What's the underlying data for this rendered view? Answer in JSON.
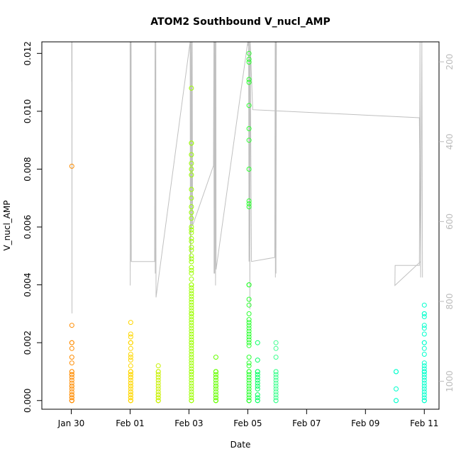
{
  "chart_data": {
    "type": "scatter",
    "title": "ATOM2 Southbound V_nucl_AMP",
    "xlabel": "Date",
    "ylabel": "V_nucl_AMP",
    "x_ticks": [
      "Jan 30",
      "Feb 01",
      "Feb 03",
      "Feb 05",
      "Feb 07",
      "Feb 09",
      "Feb 11"
    ],
    "y_ticks": [
      "0.000",
      "0.002",
      "0.004",
      "0.006",
      "0.008",
      "0.010",
      "0.012"
    ],
    "y_tick_values": [
      0,
      0.002,
      0.004,
      0.006,
      0.008,
      0.01,
      0.012
    ],
    "y2_ticks": [
      "200",
      "400",
      "600",
      "800",
      "1000"
    ],
    "y2_tick_values": [
      200,
      400,
      600,
      800,
      1000
    ],
    "y2_note": "secondary axis reversed (top 200, bottom 1000)",
    "xlim": [
      "2026-01-29 00:00",
      "2026-02-11 12:00"
    ],
    "ylim": [
      -0.0003,
      0.0124
    ],
    "y2lim": [
      1070,
      150
    ],
    "grid": false,
    "marker": "open circle",
    "colors": {
      "clusters": [
        "#ff8c00",
        "#ffd700",
        "#c8f000",
        "#9cff00",
        "#66ff00",
        "#2cff30",
        "#00ff60",
        "#40ff90",
        "#00ffcc"
      ],
      "depth_line": "#c0c0c0"
    },
    "clusters": [
      {
        "x": "2026-01-30 00:30",
        "color": "#ff8c00",
        "values": [
          0.0081,
          0.0026,
          0.002,
          0.002,
          0.0018,
          0.0015,
          0.0013,
          0.001,
          0.001,
          0.0009,
          0.0009,
          0.0008,
          0.0007,
          0.0006,
          0.0005,
          0.0005,
          0.0004,
          0.0003,
          0.0002,
          0.0002,
          0.0001,
          0.0001,
          0,
          0,
          0,
          0
        ]
      },
      {
        "x": "2026-02-01 00:30",
        "color": "#ffd700",
        "values": [
          0.0027,
          0.0023,
          0.0022,
          0.002,
          0.002,
          0.002,
          0.0018,
          0.0016,
          0.0015,
          0.0014,
          0.0012,
          0.001,
          0.001,
          0.001,
          0.001,
          0.0009,
          0.0009,
          0.0008,
          0.0008,
          0.0007,
          0.0006,
          0.0006,
          0.0005,
          0.0005,
          0.0004,
          0.0003,
          0.0003,
          0.0002,
          0.0002,
          0.0001,
          0.0001,
          0,
          0,
          0,
          0,
          0
        ]
      },
      {
        "x": "2026-02-01 23:00",
        "color": "#c8f000",
        "values": [
          0.0012,
          0.001,
          0.001,
          0.0009,
          0.0008,
          0.0007,
          0.0006,
          0.0005,
          0.0004,
          0.0003,
          0.0002,
          0.0002,
          0.0001,
          0.0001,
          0,
          0,
          0,
          0
        ]
      },
      {
        "x": "2026-02-03 02:00",
        "color": "#9cff00",
        "values": [
          0.0108,
          0.0089,
          0.0089,
          0.0085,
          0.0082,
          0.008,
          0.0078,
          0.0073,
          0.007,
          0.0067,
          0.0065,
          0.0063,
          0.006,
          0.0059,
          0.0058,
          0.0056,
          0.0055,
          0.0053,
          0.0052,
          0.005,
          0.0049,
          0.0048,
          0.0046,
          0.0045,
          0.0044,
          0.0042,
          0.004,
          0.004,
          0.0039,
          0.0038,
          0.0037,
          0.0036,
          0.0035,
          0.0034,
          0.0033,
          0.0032,
          0.0031,
          0.003,
          0.003,
          0.003,
          0.0029,
          0.0028,
          0.0027,
          0.0026,
          0.0025,
          0.0024,
          0.0023,
          0.0022,
          0.0021,
          0.002,
          0.002,
          0.0019,
          0.0018,
          0.0017,
          0.0016,
          0.0015,
          0.0014,
          0.0013,
          0.0012,
          0.0011,
          0.001,
          0.001,
          0.0009,
          0.0008,
          0.0007,
          0.0006,
          0.0005,
          0.0004,
          0.0003,
          0.0002,
          0.0001,
          0,
          0,
          0
        ]
      },
      {
        "x": "2026-02-03 22:00",
        "color": "#66ff00",
        "values": [
          0.0015,
          0.001,
          0.001,
          0.001,
          0.0009,
          0.0008,
          0.0008,
          0.0007,
          0.0006,
          0.0005,
          0.0005,
          0.0004,
          0.0003,
          0.0002,
          0.0001,
          0.0001,
          0,
          0,
          0,
          0
        ]
      },
      {
        "x": "2026-02-05 01:00",
        "color": "#2cff30",
        "values": [
          0.012,
          0.0118,
          0.0117,
          0.0111,
          0.011,
          0.0102,
          0.0094,
          0.009,
          0.008,
          0.0069,
          0.0068,
          0.0067,
          0.004,
          0.004,
          0.0035,
          0.0033,
          0.003,
          0.0028,
          0.0027,
          0.0026,
          0.0025,
          0.0024,
          0.0023,
          0.0022,
          0.0021,
          0.002,
          0.0019,
          0.0015,
          0.0013,
          0.0012,
          0.001,
          0.001,
          0.0009,
          0.0008,
          0.0007,
          0.0006,
          0.0005,
          0.0004,
          0.0003,
          0.0002,
          0.0001,
          0,
          0,
          0,
          0
        ]
      },
      {
        "x": "2026-02-05 08:00",
        "color": "#00ff60",
        "values": [
          0.002,
          0.0014,
          0.001,
          0.001,
          0.0009,
          0.0008,
          0.0007,
          0.0006,
          0.0005,
          0.0004,
          0.0002,
          0.0001,
          0,
          0
        ]
      },
      {
        "x": "2026-02-05 23:00",
        "color": "#40ff90",
        "values": [
          0.002,
          0.0018,
          0.0015,
          0.001,
          0.001,
          0.0009,
          0.0008,
          0.0007,
          0.0006,
          0.0005,
          0.0004,
          0.0003,
          0.0002,
          0.0001,
          0,
          0,
          0
        ]
      },
      {
        "x": "2026-02-10 01:00",
        "color": "#00ffcc",
        "values": [
          0.001,
          0.001,
          0.0004,
          0,
          0
        ]
      },
      {
        "x": "2026-02-11 00:00",
        "color": "#00ffcc",
        "values": [
          0.0033,
          0.003,
          0.003,
          0.0029,
          0.0026,
          0.0025,
          0.0023,
          0.002,
          0.002,
          0.0018,
          0.0016,
          0.0013,
          0.0012,
          0.0011,
          0.001,
          0.001,
          0.001,
          0.0009,
          0.0008,
          0.0007,
          0.0006,
          0.0005,
          0.0004,
          0.0003,
          0.0002,
          0.0001,
          0,
          0,
          0
        ]
      }
    ],
    "depth_line": {
      "series": "depth (secondary axis)",
      "points": [
        [
          "2026-01-30 00:20",
          150
        ],
        [
          "2026-01-30 00:25",
          250
        ],
        [
          "2026-01-30 00:30",
          150
        ],
        [
          "2026-01-30 00:35",
          830
        ],
        [
          "2026-01-30 00:40",
          150
        ],
        [
          "2026-02-01 00:00",
          150
        ],
        [
          "2026-02-01 00:05",
          760
        ],
        [
          "2026-02-01 00:15",
          150
        ],
        [
          "2026-02-01 00:20",
          700
        ],
        [
          "2026-02-01 00:30",
          150
        ],
        [
          "2026-02-01 00:40",
          500
        ],
        [
          "2026-02-01 00:50",
          150
        ],
        [
          "2026-02-01 01:00",
          700
        ],
        [
          "2026-02-01 20:00",
          700
        ],
        [
          "2026-02-01 20:20",
          150
        ],
        [
          "2026-02-01 20:30",
          730
        ],
        [
          "2026-02-01 21:00",
          150
        ],
        [
          "2026-02-01 21:10",
          790
        ],
        [
          "2026-02-03 01:00",
          150
        ],
        [
          "2026-02-03 01:10",
          700
        ],
        [
          "2026-02-03 01:20",
          150
        ],
        [
          "2026-02-03 01:30",
          680
        ],
        [
          "2026-02-03 02:00",
          150
        ],
        [
          "2026-02-03 02:20",
          620
        ],
        [
          "2026-02-03 02:40",
          150
        ],
        [
          "2026-02-03 03:00",
          610
        ],
        [
          "2026-02-03 20:00",
          460
        ],
        [
          "2026-02-03 20:20",
          150
        ],
        [
          "2026-02-03 20:30",
          730
        ],
        [
          "2026-02-03 20:50",
          150
        ],
        [
          "2026-02-03 21:00",
          730
        ],
        [
          "2026-02-03 21:20",
          150
        ],
        [
          "2026-02-03 21:40",
          760
        ],
        [
          "2026-02-03 22:00",
          150
        ],
        [
          "2026-02-03 22:10",
          720
        ],
        [
          "2026-02-05 00:00",
          150
        ],
        [
          "2026-02-05 00:20",
          160
        ],
        [
          "2026-02-05 00:40",
          150
        ],
        [
          "2026-02-05 01:00",
          700
        ],
        [
          "2026-02-05 01:20",
          150
        ],
        [
          "2026-02-05 01:40",
          820
        ],
        [
          "2026-02-05 02:00",
          150
        ],
        [
          "2026-02-05 03:00",
          700
        ],
        [
          "2026-02-05 22:00",
          690
        ],
        [
          "2026-02-05 22:20",
          150
        ],
        [
          "2026-02-05 22:30",
          740
        ],
        [
          "2026-02-05 22:50",
          150
        ],
        [
          "2026-02-05 23:00",
          730
        ],
        [
          "2026-02-05 23:20",
          150
        ],
        [
          "2026-02-05 02:00",
          150
        ],
        [
          "2026-02-05 04:00",
          320
        ],
        [
          "2026-02-10 20:00",
          340
        ],
        [
          "2026-02-10 21:00",
          700
        ],
        [
          "2026-02-10 00:00",
          760
        ],
        [
          "2026-02-10 00:10",
          710
        ],
        [
          "2026-02-10 20:00",
          710
        ],
        [
          "2026-02-10 20:30",
          150
        ],
        [
          "2026-02-10 21:00",
          740
        ],
        [
          "2026-02-10 22:00",
          150
        ],
        [
          "2026-02-10 22:30",
          740
        ]
      ]
    }
  }
}
